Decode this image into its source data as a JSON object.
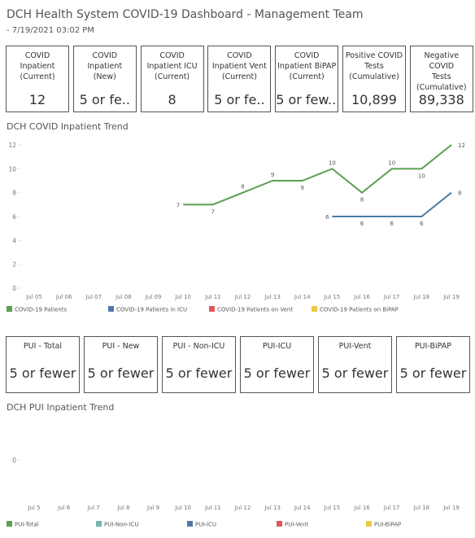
{
  "header": {
    "title": "DCH Health System COVID-19 Dashboard - Management Team",
    "subtitle": "- 7/19/2021 03:02 PM"
  },
  "kpis": [
    {
      "label": [
        "COVID",
        "Inpatient",
        "(Current)"
      ],
      "value": "12"
    },
    {
      "label": [
        "COVID",
        "Inpatient",
        "(New)"
      ],
      "value": "5 or fe.."
    },
    {
      "label": [
        "COVID",
        "Inpatient ICU",
        "(Current)"
      ],
      "value": "8"
    },
    {
      "label": [
        "COVID",
        "Inpatient Vent",
        "(Current)"
      ],
      "value": "5 or fe.."
    },
    {
      "label": [
        "COVID",
        "Inpatient BiPAP",
        "(Current)"
      ],
      "value": "5 or few..."
    },
    {
      "label": [
        "Positive COVID",
        "Tests",
        "(Cumulative)"
      ],
      "value": "10,899"
    },
    {
      "label": [
        "Negative COVID",
        "Tests",
        "(Cumulative)"
      ],
      "value": "89,338"
    }
  ],
  "pui_kpis": [
    {
      "label": "PUI - Total",
      "value": "5 or fewer"
    },
    {
      "label": "PUI - New",
      "value": "5 or fewer"
    },
    {
      "label": "PUI - Non-ICU",
      "value": "5 or fewer"
    },
    {
      "label": "PUI-ICU",
      "value": "5 or fewer"
    },
    {
      "label": "PUI-Vent",
      "value": "5 or fewer"
    },
    {
      "label": "PUI-BiPAP",
      "value": "5 or fewer"
    }
  ],
  "chart_data": [
    {
      "type": "line",
      "title": "DCH COVID Inpatient Trend",
      "categories": [
        "Jul 05",
        "Jul 06",
        "Jul 07",
        "Jul 08",
        "Jul 09",
        "Jul 10",
        "Jul 11",
        "Jul 12",
        "Jul 13",
        "Jul 14",
        "Jul 15",
        "Jul 16",
        "Jul 17",
        "Jul 18",
        "Jul 19"
      ],
      "ylim": [
        0,
        12
      ],
      "yticks": [
        0,
        2,
        4,
        6,
        8,
        10,
        12
      ],
      "series": [
        {
          "name": "COVID-19 Patients",
          "color": "#59a14f",
          "values": [
            null,
            null,
            null,
            null,
            null,
            7,
            7,
            8,
            9,
            9,
            10,
            8,
            10,
            10,
            12
          ]
        },
        {
          "name": "COVID-19 Patients in ICU",
          "color": "#4e79a7",
          "values": [
            null,
            null,
            null,
            null,
            null,
            null,
            null,
            null,
            null,
            null,
            6,
            6,
            6,
            6,
            8
          ]
        },
        {
          "name": "COVID-19 Patients on Vent",
          "color": "#e15759",
          "values": [
            null,
            null,
            null,
            null,
            null,
            null,
            null,
            null,
            null,
            null,
            null,
            null,
            null,
            null,
            null
          ]
        },
        {
          "name": "COVID-19 Patients on BiPAP",
          "color": "#edc948",
          "values": [
            null,
            null,
            null,
            null,
            null,
            null,
            null,
            null,
            null,
            null,
            null,
            null,
            null,
            null,
            null
          ]
        }
      ]
    },
    {
      "type": "line",
      "title": "DCH PUI Inpatient Trend",
      "categories": [
        "Jul 5",
        "Jul 6",
        "Jul 7",
        "Jul 8",
        "Jul 9",
        "Jul 10",
        "Jul 11",
        "Jul 12",
        "Jul 13",
        "Jul 14",
        "Jul 15",
        "Jul 16",
        "Jul 17",
        "Jul 18",
        "Jul 19"
      ],
      "yticks": [
        0
      ],
      "series": [
        {
          "name": "PUI-Total",
          "color": "#59a14f",
          "values": [
            null,
            null,
            null,
            null,
            null,
            null,
            null,
            null,
            null,
            null,
            null,
            null,
            null,
            null,
            null
          ]
        },
        {
          "name": "PUI-Non-ICU",
          "color": "#76b7b2",
          "values": [
            null,
            null,
            null,
            null,
            null,
            null,
            null,
            null,
            null,
            null,
            null,
            null,
            null,
            null,
            null
          ]
        },
        {
          "name": "PUI-ICU",
          "color": "#4e79a7",
          "values": [
            null,
            null,
            null,
            null,
            null,
            null,
            null,
            null,
            null,
            null,
            null,
            null,
            null,
            null,
            null
          ]
        },
        {
          "name": "PUI-Vent",
          "color": "#e15759",
          "values": [
            null,
            null,
            null,
            null,
            null,
            null,
            null,
            null,
            null,
            null,
            null,
            null,
            null,
            null,
            null
          ]
        },
        {
          "name": "PUI-BiPAP",
          "color": "#edc948",
          "values": [
            null,
            null,
            null,
            null,
            null,
            null,
            null,
            null,
            null,
            null,
            null,
            null,
            null,
            null,
            null
          ]
        }
      ]
    }
  ]
}
